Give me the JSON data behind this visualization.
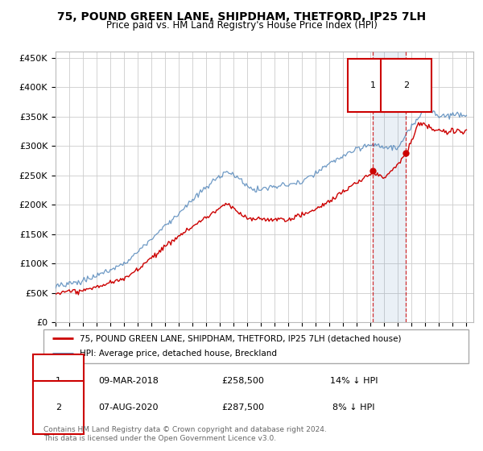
{
  "title": "75, POUND GREEN LANE, SHIPDHAM, THETFORD, IP25 7LH",
  "subtitle": "Price paid vs. HM Land Registry's House Price Index (HPI)",
  "ylim": [
    0,
    460000
  ],
  "yticks": [
    0,
    50000,
    100000,
    150000,
    200000,
    250000,
    300000,
    350000,
    400000,
    450000
  ],
  "ytick_labels": [
    "£0",
    "£50K",
    "£100K",
    "£150K",
    "£200K",
    "£250K",
    "£300K",
    "£350K",
    "£400K",
    "£450K"
  ],
  "xlim_start": 1995.0,
  "xlim_end": 2025.5,
  "point1": {
    "date_num": 2018.17,
    "price": 258500,
    "label": "1",
    "date_str": "09-MAR-2018",
    "note": "14% ↓ HPI"
  },
  "point2": {
    "date_num": 2020.58,
    "price": 287500,
    "label": "2",
    "date_str": "07-AUG-2020",
    "note": "8% ↓ HPI"
  },
  "legend_label_red": "75, POUND GREEN LANE, SHIPDHAM, THETFORD, IP25 7LH (detached house)",
  "legend_label_blue": "HPI: Average price, detached house, Breckland",
  "footer": "Contains HM Land Registry data © Crown copyright and database right 2024.\nThis data is licensed under the Open Government Licence v3.0.",
  "red_color": "#cc0000",
  "blue_color": "#5588bb",
  "background_color": "#ffffff",
  "grid_color": "#cccccc"
}
